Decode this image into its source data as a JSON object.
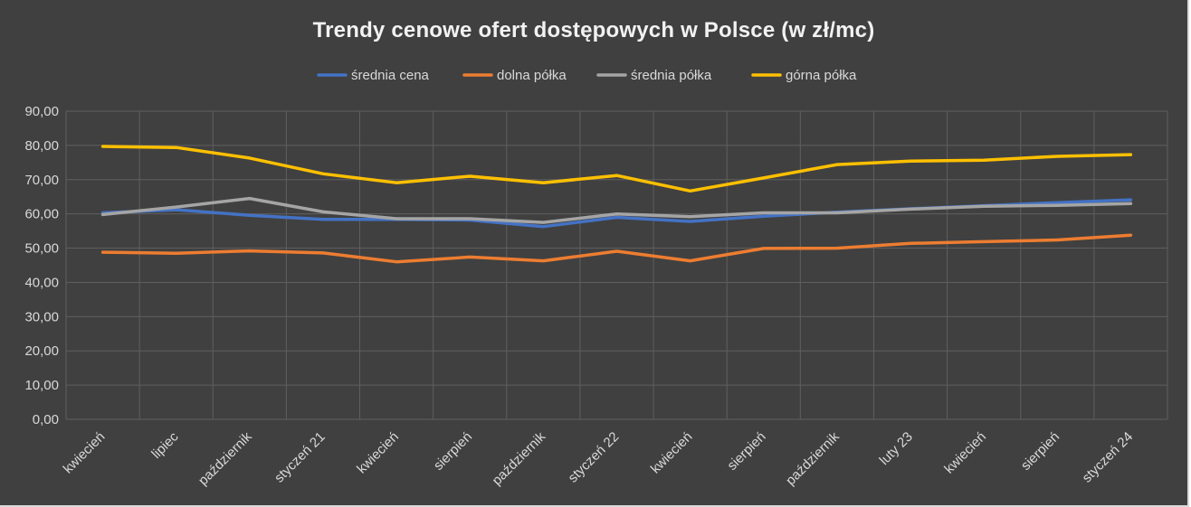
{
  "chart_data": {
    "type": "line",
    "title": "Trendy cenowe ofert dostępowych w Polsce (w zł/mc)",
    "xlabel": "",
    "ylabel": "",
    "categories": [
      "kwiecień",
      "lipiec",
      "październik",
      "styczeń 21",
      "kwiecień",
      "sierpień",
      "październik",
      "styczeń 22",
      "kwiecień",
      "sierpień",
      "październik",
      "luty 23",
      "kwiecień",
      "sierpień",
      "styczeń 24"
    ],
    "ylim": [
      0,
      90
    ],
    "yticks": [
      "0,00",
      "10,00",
      "20,00",
      "30,00",
      "40,00",
      "50,00",
      "60,00",
      "70,00",
      "80,00",
      "90,00"
    ],
    "grid": true,
    "legend_position": "top",
    "series": [
      {
        "name": "średnia cena",
        "color": "#4472c4",
        "values": [
          60.3,
          61.2,
          59.6,
          58.4,
          58.4,
          58.2,
          56.3,
          59.0,
          57.8,
          59.3,
          60.5,
          61.5,
          62.4,
          63.3,
          64.1
        ]
      },
      {
        "name": "dolna półka",
        "color": "#ed7d31",
        "values": [
          48.8,
          48.5,
          49.2,
          48.6,
          46.0,
          47.4,
          46.3,
          49.1,
          46.3,
          49.9,
          50.0,
          51.4,
          51.9,
          52.4,
          53.8
        ]
      },
      {
        "name": "średnia półka",
        "color": "#a5a5a5",
        "values": [
          59.8,
          62.0,
          64.5,
          60.6,
          58.6,
          58.6,
          57.5,
          60.0,
          59.2,
          60.3,
          60.3,
          61.4,
          62.2,
          62.5,
          63.0
        ]
      },
      {
        "name": "górna półka",
        "color": "#ffc000",
        "values": [
          79.7,
          79.4,
          76.3,
          71.7,
          69.1,
          71.0,
          69.1,
          71.2,
          66.7,
          70.5,
          74.4,
          75.4,
          75.7,
          76.8,
          77.3
        ]
      }
    ]
  }
}
